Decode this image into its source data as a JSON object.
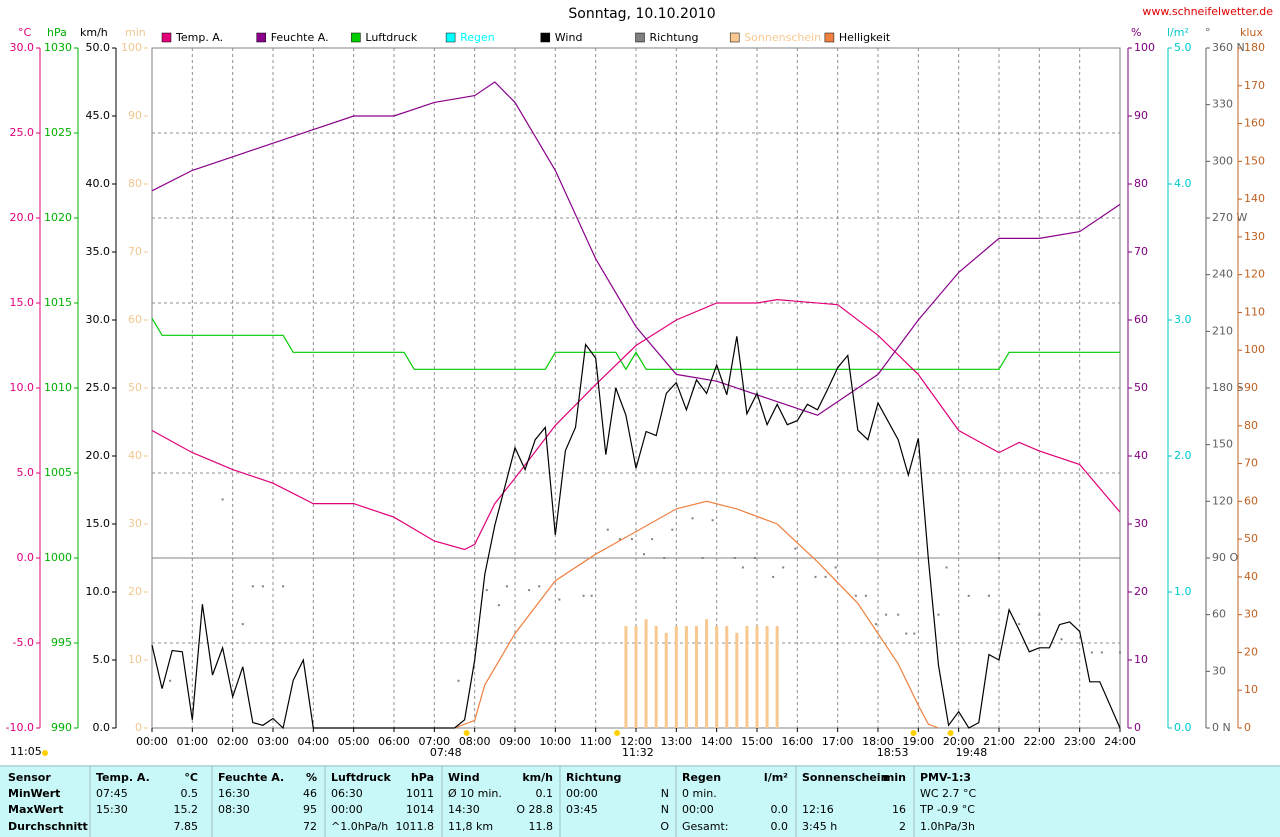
{
  "chart_data": {
    "type": "line",
    "title": "Sonntag, 10.10.2010",
    "source": "www.schneifelwetter.de",
    "xlim": [
      0,
      24
    ],
    "xticks": [
      {
        "value": 0,
        "label": "00:00"
      },
      {
        "value": 1,
        "label": "01:00"
      },
      {
        "value": 2,
        "label": "02:00"
      },
      {
        "value": 3,
        "label": "03:00"
      },
      {
        "value": 4,
        "label": "04:00"
      },
      {
        "value": 5,
        "label": "05:00"
      },
      {
        "value": 6,
        "label": "06:00"
      },
      {
        "value": 7,
        "label": "07:00"
      },
      {
        "value": 8,
        "label": "08:00"
      },
      {
        "value": 9,
        "label": "09:00"
      },
      {
        "value": 10,
        "label": "10:00"
      },
      {
        "value": 11,
        "label": "11:00"
      },
      {
        "value": 12,
        "label": "12:00"
      },
      {
        "value": 13,
        "label": "13:00"
      },
      {
        "value": 14,
        "label": "14:00"
      },
      {
        "value": 15,
        "label": "15:00"
      },
      {
        "value": 16,
        "label": "16:00"
      },
      {
        "value": 17,
        "label": "17:00"
      },
      {
        "value": 18,
        "label": "18:00"
      },
      {
        "value": 19,
        "label": "19:00"
      },
      {
        "value": 20,
        "label": "20:00"
      },
      {
        "value": 21,
        "label": "21:00"
      },
      {
        "value": 22,
        "label": "22:00"
      },
      {
        "value": 23,
        "label": "23:00"
      },
      {
        "value": 24,
        "label": "24:00"
      }
    ],
    "grid": true,
    "axes": [
      {
        "label": "°C",
        "color": "#e0007a",
        "lim": [
          -10,
          30
        ],
        "ticks": [
          {
            "value": 30,
            "label": "30.0"
          },
          {
            "value": 25,
            "label": "25.0"
          },
          {
            "value": 20,
            "label": "20.0"
          },
          {
            "value": 15,
            "label": "15.0"
          },
          {
            "value": 10,
            "label": "10.0"
          },
          {
            "value": 5,
            "label": "5.0"
          },
          {
            "value": 0,
            "label": "0.0"
          },
          {
            "value": -5,
            "label": "-5.0"
          },
          {
            "value": -10,
            "label": "-10.0"
          }
        ]
      },
      {
        "label": "hPa",
        "color": "#00b000",
        "lim": [
          990,
          1030
        ],
        "ticks": [
          1030,
          1025,
          1020,
          1015,
          1010,
          1005,
          1000,
          995,
          990
        ]
      },
      {
        "label": "km/h",
        "color": "#000000",
        "lim": [
          0,
          50
        ],
        "ticks": [
          {
            "value": 50,
            "label": "50.0"
          },
          {
            "value": 45,
            "label": "45.0"
          },
          {
            "value": 40,
            "label": "40.0"
          },
          {
            "value": 35,
            "label": "35.0"
          },
          {
            "value": 30,
            "label": "30.0"
          },
          {
            "value": 25,
            "label": "25.0"
          },
          {
            "value": 20,
            "label": "20.0"
          },
          {
            "value": 15,
            "label": "15.0"
          },
          {
            "value": 10,
            "label": "10.0"
          },
          {
            "value": 5,
            "label": "5.0"
          },
          {
            "value": 0,
            "label": "0.0"
          }
        ]
      },
      {
        "label": "min",
        "color": "#f0c890",
        "lim": [
          0,
          100
        ],
        "ticks": [
          100,
          90,
          80,
          70,
          60,
          50,
          40,
          30,
          20,
          10,
          0
        ]
      },
      {
        "label": "%",
        "color": "#800080",
        "lim": [
          0,
          100
        ],
        "ticks": [
          100,
          90,
          80,
          70,
          60,
          50,
          40,
          30,
          20,
          10,
          0
        ]
      },
      {
        "label": "l/m²",
        "color": "#00c8c8",
        "lim": [
          0,
          5
        ],
        "ticks": [
          {
            "value": 5,
            "label": "5.0"
          },
          {
            "value": 4,
            "label": "4.0"
          },
          {
            "value": 3,
            "label": "3.0"
          },
          {
            "value": 2,
            "label": "2.0"
          },
          {
            "value": 1,
            "label": "1.0"
          },
          {
            "value": 0,
            "label": "0.0"
          }
        ]
      },
      {
        "label": "°",
        "color": "#606060",
        "lim": [
          0,
          360
        ],
        "ticks": [
          {
            "value": 360,
            "label": "360 N"
          },
          330,
          300,
          {
            "value": 270,
            "label": "270 W"
          },
          240,
          210,
          {
            "value": 180,
            "label": "180 S"
          },
          150,
          120,
          {
            "value": 90,
            "label": "90 O"
          },
          60,
          30,
          {
            "value": 0,
            "label": "0 N"
          }
        ]
      },
      {
        "label": "klux",
        "color": "#c06020",
        "lim": [
          0,
          180
        ],
        "ticks": [
          180,
          170,
          160,
          150,
          140,
          130,
          120,
          110,
          100,
          90,
          80,
          70,
          60,
          50,
          40,
          30,
          20,
          10,
          0
        ]
      }
    ],
    "series": [
      {
        "name": "Temp. A.",
        "type": "line",
        "axis": 0,
        "color": "#e0007a",
        "x": [
          0,
          1,
          2,
          3,
          4,
          5,
          6,
          7,
          7.75,
          8,
          8.5,
          9,
          10,
          11,
          12,
          13,
          14,
          15,
          15.5,
          16,
          17,
          18,
          19,
          20,
          21,
          21.5,
          22,
          23,
          24
        ],
        "values": [
          7.5,
          6.2,
          5.2,
          4.4,
          3.2,
          3.2,
          2.4,
          1.0,
          0.5,
          0.8,
          3.2,
          4.7,
          7.8,
          10.2,
          12.5,
          14.0,
          15.0,
          15.0,
          15.2,
          15.1,
          14.9,
          13.1,
          10.8,
          7.5,
          6.2,
          6.8,
          6.3,
          5.5,
          2.7
        ]
      },
      {
        "name": "Feuchte A.",
        "type": "line",
        "axis": 4,
        "color": "#8a008a",
        "x": [
          0,
          1,
          2,
          3,
          4,
          5,
          6,
          7,
          8,
          8.5,
          9,
          10,
          11,
          11.5,
          12,
          13,
          14,
          15,
          16,
          16.5,
          17,
          18,
          19,
          20,
          21,
          22,
          23,
          24
        ],
        "values": [
          79,
          82,
          84,
          86,
          88,
          90,
          90,
          92,
          93,
          95,
          92,
          82,
          69,
          64,
          59,
          52,
          51,
          49,
          47,
          46,
          48,
          52,
          60,
          67,
          72,
          72,
          73,
          77
        ]
      },
      {
        "name": "Luftdruck",
        "type": "line",
        "axis": 1,
        "color": "#00cc00",
        "x": [
          0,
          0.25,
          3.25,
          3.5,
          6.25,
          6.5,
          9.75,
          10,
          11.5,
          11.75,
          12,
          12.25,
          21,
          21.25,
          24
        ],
        "values": [
          1014.1,
          1013.1,
          1013.1,
          1012.1,
          1012.1,
          1011.1,
          1011.1,
          1012.1,
          1012.1,
          1011.1,
          1012.1,
          1011.1,
          1011.1,
          1012.1,
          1012.1
        ]
      },
      {
        "name": "Regen",
        "type": "bar",
        "axis": 5,
        "color": "#00ffff",
        "x": [],
        "values": []
      },
      {
        "name": "Wind",
        "type": "line",
        "axis": 2,
        "color": "#000000",
        "x": [
          0,
          0.25,
          0.5,
          0.75,
          1,
          1.25,
          1.5,
          1.75,
          2,
          2.25,
          2.5,
          2.75,
          3,
          3.25,
          3.5,
          3.75,
          4,
          7.5,
          7.75,
          8,
          8.25,
          8.5,
          9,
          9.25,
          9.5,
          9.75,
          10,
          10.25,
          10.5,
          10.75,
          11,
          11.25,
          11.5,
          11.75,
          12,
          12.25,
          12.5,
          12.75,
          13,
          13.25,
          13.5,
          13.75,
          14,
          14.25,
          14.5,
          14.75,
          15,
          15.25,
          15.5,
          15.75,
          16,
          16.25,
          16.5,
          16.75,
          17,
          17.25,
          17.5,
          17.75,
          18,
          18.5,
          18.75,
          19,
          19.25,
          19.5,
          19.75,
          20,
          20.25,
          20.5,
          20.75,
          21,
          21.25,
          21.5,
          21.75,
          22,
          22.25,
          22.5,
          22.75,
          23,
          23.25,
          23.5,
          24
        ],
        "values": [
          6.1,
          2.9,
          5.7,
          5.6,
          0.6,
          9.1,
          3.9,
          5.9,
          2.3,
          4.5,
          0.4,
          0.2,
          0.7,
          0,
          3.5,
          5.0,
          0,
          0,
          0.6,
          5.0,
          11.3,
          14.9,
          20.6,
          19.0,
          21.2,
          22.1,
          14.2,
          20.4,
          22.1,
          28.2,
          27.2,
          20.1,
          25.0,
          23.0,
          19.1,
          21.8,
          21.5,
          24.6,
          25.4,
          23.4,
          25.6,
          24.6,
          26.7,
          24.5,
          28.8,
          23.1,
          24.6,
          22.3,
          23.8,
          22.3,
          22.6,
          23.8,
          23.4,
          24.9,
          26.5,
          27.4,
          21.9,
          21.2,
          23.9,
          21.2,
          18.6,
          21.3,
          12.4,
          4.6,
          0.2,
          1.2,
          0,
          0.4,
          5.4,
          5.0,
          8.7,
          7.2,
          5.6,
          5.9,
          5.9,
          7.6,
          7.8,
          7.1,
          3.4,
          3.4,
          0
        ]
      },
      {
        "name": "Richtung",
        "type": "scatter",
        "axis": 6,
        "color": "#808080",
        "x": [
          0.45,
          1.75,
          2.25,
          2.5,
          2.75,
          3.25,
          7.6,
          8.3,
          8.6,
          8.8,
          9.35,
          9.6,
          10.1,
          10.7,
          10.9,
          11.3,
          11.6,
          11.9,
          12.2,
          12.4,
          12.7,
          12.9,
          13.4,
          13.65,
          13.9,
          14.45,
          14.65,
          14.95,
          15.4,
          15.65,
          15.95,
          16.45,
          16.7,
          16.95,
          17.45,
          17.7,
          17.95,
          18.2,
          18.5,
          18.7,
          18.9,
          19.5,
          19.7,
          20.25,
          20.75,
          21.0,
          21.5,
          22.0,
          22.55,
          23.3,
          23.55,
          24.0
        ],
        "values": [
          25,
          121,
          55,
          75,
          75,
          75,
          25,
          73,
          65,
          75,
          73,
          75,
          68,
          70,
          70,
          105,
          100,
          100,
          92,
          100,
          90,
          105,
          111,
          90,
          110,
          90,
          85,
          90,
          80,
          85,
          95,
          80,
          80,
          85,
          70,
          70,
          55,
          60,
          60,
          50,
          50,
          60,
          85,
          70,
          70,
          90,
          55,
          60,
          47,
          40,
          40,
          40
        ]
      },
      {
        "name": "Sonnenschein",
        "type": "bar",
        "axis": 3,
        "color": "#f8c890",
        "x": [
          11.75,
          12,
          12.25,
          12.5,
          12.75,
          13,
          13.25,
          13.5,
          13.75,
          14,
          14.25,
          14.5,
          14.75,
          15,
          15.25,
          15.5
        ],
        "values": [
          15,
          15,
          16,
          15,
          14,
          15,
          15,
          15,
          16,
          15,
          15,
          14,
          15,
          15,
          15,
          15
        ]
      },
      {
        "name": "Helligkeit",
        "type": "line",
        "axis": 7,
        "color": "#f08040",
        "x": [
          7.5,
          8,
          8.25,
          9,
          10,
          11,
          12,
          13,
          13.75,
          14.5,
          15.5,
          16.5,
          17.5,
          18.5,
          19,
          19.25,
          19.5
        ],
        "values": [
          0,
          2,
          11.4,
          25,
          39,
          46,
          52,
          58,
          60,
          58,
          54,
          44,
          33,
          17,
          6,
          1,
          0
        ]
      }
    ],
    "annotations": [
      {
        "text": "11:05"
      },
      {
        "text": "07:48",
        "x": 7.8
      },
      {
        "text": "11:32",
        "x": 11.53
      },
      {
        "text": "18:53",
        "x": 18.88
      },
      {
        "text": "19:48",
        "x": 19.8
      }
    ]
  },
  "table": {
    "corner": "Sensor",
    "columns": [
      {
        "title": "Temp. A.",
        "unit": "°C"
      },
      {
        "title": "Feuchte A.",
        "unit": "%"
      },
      {
        "title": "Luftdruck",
        "unit": "hPa"
      },
      {
        "title": "Wind",
        "unit": "km/h"
      },
      {
        "title": "Richtung",
        "unit": null
      },
      {
        "title": "Regen",
        "unit": "l/m²"
      },
      {
        "title": "Sonnenschein",
        "unit": "min"
      },
      {
        "title": "PMV-1:3",
        "unit": null
      }
    ],
    "rows": [
      {
        "label": "MinWert",
        "cells": [
          [
            "07:45",
            "0.5"
          ],
          [
            "16:30",
            "46"
          ],
          [
            "06:30",
            "1011"
          ],
          [
            "Ø 10 min.",
            "0.1"
          ],
          [
            "00:00",
            "N"
          ],
          [
            "0 min.",
            null
          ],
          [
            null,
            null
          ],
          [
            "WC 2.7 °C",
            null
          ]
        ]
      },
      {
        "label": "MaxWert",
        "cells": [
          [
            "15:30",
            "15.2"
          ],
          [
            "08:30",
            "95"
          ],
          [
            "00:00",
            "1014"
          ],
          [
            "14:30",
            "O 28.8"
          ],
          [
            "03:45",
            "N"
          ],
          [
            "00:00",
            "0.0"
          ],
          [
            "12:16",
            "16"
          ],
          [
            "TP -0.9 °C",
            null
          ]
        ]
      },
      {
        "label": "Durchschnitt",
        "cells": [
          [
            null,
            "7.85"
          ],
          [
            null,
            "72"
          ],
          [
            "^1.0hPa/h",
            "1011.8"
          ],
          [
            "11,8 km",
            "11.8"
          ],
          [
            null,
            "O"
          ],
          [
            "Gesamt:",
            "0.0"
          ],
          [
            "3:45 h",
            "2"
          ],
          [
            "1.0hPa/3h",
            null
          ]
        ]
      }
    ]
  }
}
